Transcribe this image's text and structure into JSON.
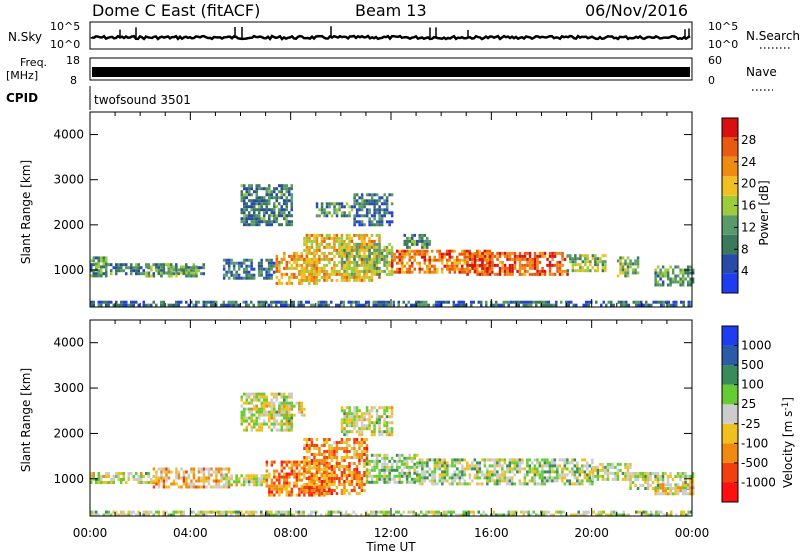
{
  "header": {
    "station": "Dome C East (fitACF)",
    "beam": "Beam 13",
    "date": "06/Nov/2016"
  },
  "top_panels": {
    "nsky_label": "N.Sky",
    "nsky_ticks": [
      "10^5",
      "10^0"
    ],
    "nsearch_label": "N.Search",
    "nsearch_ticks": [
      "10^5",
      "10^0"
    ],
    "freq_label": "Freq.",
    "freq_unit": "[MHz]",
    "freq_ticks": [
      "18",
      "8"
    ],
    "nave_label": "Nave",
    "nave_ticks": [
      "60",
      "0"
    ],
    "cpid_label": "CPID",
    "cpid_value": "twofsound 3501"
  },
  "colors": {
    "power": [
      "#1e3cf0",
      "#2a4aa8",
      "#3a7a5a",
      "#5a9a6a",
      "#9ccc3a",
      "#f0c020",
      "#f08a10",
      "#e85a10",
      "#d81010"
    ],
    "velocity": [
      "#ff1010",
      "#f04010",
      "#f08a10",
      "#f0c020",
      "#cccccc",
      "#66cc33",
      "#3a8a5a",
      "#2a5aa8",
      "#1e3cf0"
    ]
  },
  "power_scale": {
    "label": "Power [dB]",
    "ticks": [
      "28",
      "24",
      "20",
      "16",
      "12",
      "8",
      "4"
    ]
  },
  "velocity_scale": {
    "label": "Velocity  [m s",
    "label_sup": "-1",
    "label_end": "]",
    "ticks": [
      "1000",
      "500",
      "100",
      "25",
      "-25",
      "-100",
      "-500",
      "-1000"
    ]
  },
  "chart_data": [
    {
      "type": "heatmap",
      "title": "",
      "ylabel": "Slant Range [km]",
      "xlabel": "",
      "y_ticks": [
        "1000",
        "2000",
        "3000",
        "4000"
      ],
      "ylim": [
        180,
        4500
      ],
      "xlim": [
        0,
        24
      ],
      "value_label": "Power [dB]",
      "value_range": [
        0,
        30
      ],
      "bands": [
        {
          "t": [
            0.0,
            4.5
          ],
          "r": [
            950,
            1150
          ],
          "value": 9
        },
        {
          "t": [
            0.0,
            0.6
          ],
          "r": [
            900,
            1300
          ],
          "value": 12
        },
        {
          "t": [
            2.2,
            4.2
          ],
          "r": [
            880,
            1100
          ],
          "value": 12
        },
        {
          "t": [
            5.3,
            7.3
          ],
          "r": [
            850,
            1250
          ],
          "value": 8
        },
        {
          "t": [
            7.4,
            9.0
          ],
          "r": [
            700,
            1400
          ],
          "value": 21
        },
        {
          "t": [
            8.5,
            11.5
          ],
          "r": [
            800,
            1800
          ],
          "value": 19
        },
        {
          "t": [
            10.0,
            12.0
          ],
          "r": [
            900,
            1600
          ],
          "value": 14
        },
        {
          "t": [
            12.0,
            16.0
          ],
          "r": [
            950,
            1450
          ],
          "value": 23
        },
        {
          "t": [
            15.0,
            19.0
          ],
          "r": [
            900,
            1400
          ],
          "value": 25
        },
        {
          "t": [
            19.0,
            20.5
          ],
          "r": [
            1000,
            1350
          ],
          "value": 14
        },
        {
          "t": [
            21.0,
            21.8
          ],
          "r": [
            900,
            1300
          ],
          "value": 13
        },
        {
          "t": [
            22.5,
            24.0
          ],
          "r": [
            700,
            1100
          ],
          "value": 11
        },
        {
          "t": [
            6.0,
            8.0
          ],
          "r": [
            2000,
            2900
          ],
          "value": 9
        },
        {
          "t": [
            9.0,
            10.5
          ],
          "r": [
            2200,
            2500
          ],
          "value": 10
        },
        {
          "t": [
            10.5,
            12.0
          ],
          "r": [
            2000,
            2700
          ],
          "value": 8
        },
        {
          "t": [
            12.5,
            13.5
          ],
          "r": [
            1500,
            1800
          ],
          "value": 10
        },
        {
          "t": [
            0.0,
            24.0
          ],
          "r": [
            200,
            320
          ],
          "value": 7
        }
      ]
    },
    {
      "type": "heatmap",
      "title": "",
      "ylabel": "Slant Range [km]",
      "xlabel": "Time UT",
      "x_ticks": [
        "00:00",
        "04:00",
        "08:00",
        "12:00",
        "16:00",
        "20:00",
        "00:00"
      ],
      "y_ticks": [
        "1000",
        "2000",
        "3000",
        "4000"
      ],
      "ylim": [
        180,
        4500
      ],
      "xlim": [
        0,
        24
      ],
      "value_label": "Velocity [m s-1]",
      "value_range": [
        -1000,
        1000
      ],
      "bands": [
        {
          "t": [
            0.0,
            2.5
          ],
          "r": [
            950,
            1150
          ],
          "value": 0
        },
        {
          "t": [
            2.5,
            5.5
          ],
          "r": [
            850,
            1250
          ],
          "value": -300
        },
        {
          "t": [
            5.3,
            7.0
          ],
          "r": [
            850,
            1100
          ],
          "value": 0
        },
        {
          "t": [
            7.0,
            9.5
          ],
          "r": [
            650,
            1400
          ],
          "value": -500
        },
        {
          "t": [
            8.5,
            11.0
          ],
          "r": [
            700,
            1900
          ],
          "value": -450
        },
        {
          "t": [
            11.0,
            13.0
          ],
          "r": [
            950,
            1550
          ],
          "value": 150
        },
        {
          "t": [
            13.0,
            20.0
          ],
          "r": [
            900,
            1450
          ],
          "value": 120
        },
        {
          "t": [
            20.0,
            21.5
          ],
          "r": [
            1000,
            1350
          ],
          "value": 50
        },
        {
          "t": [
            21.5,
            24.0
          ],
          "r": [
            800,
            1150
          ],
          "value": 40
        },
        {
          "t": [
            22.5,
            24.0
          ],
          "r": [
            650,
            900
          ],
          "value": -150
        },
        {
          "t": [
            6.0,
            8.0
          ],
          "r": [
            2100,
            2900
          ],
          "value": 0
        },
        {
          "t": [
            7.5,
            8.5
          ],
          "r": [
            2400,
            2700
          ],
          "value": -150
        },
        {
          "t": [
            10.0,
            12.0
          ],
          "r": [
            2000,
            2600
          ],
          "value": 0
        },
        {
          "t": [
            0.0,
            24.0
          ],
          "r": [
            200,
            300
          ],
          "value": 60
        }
      ]
    }
  ]
}
